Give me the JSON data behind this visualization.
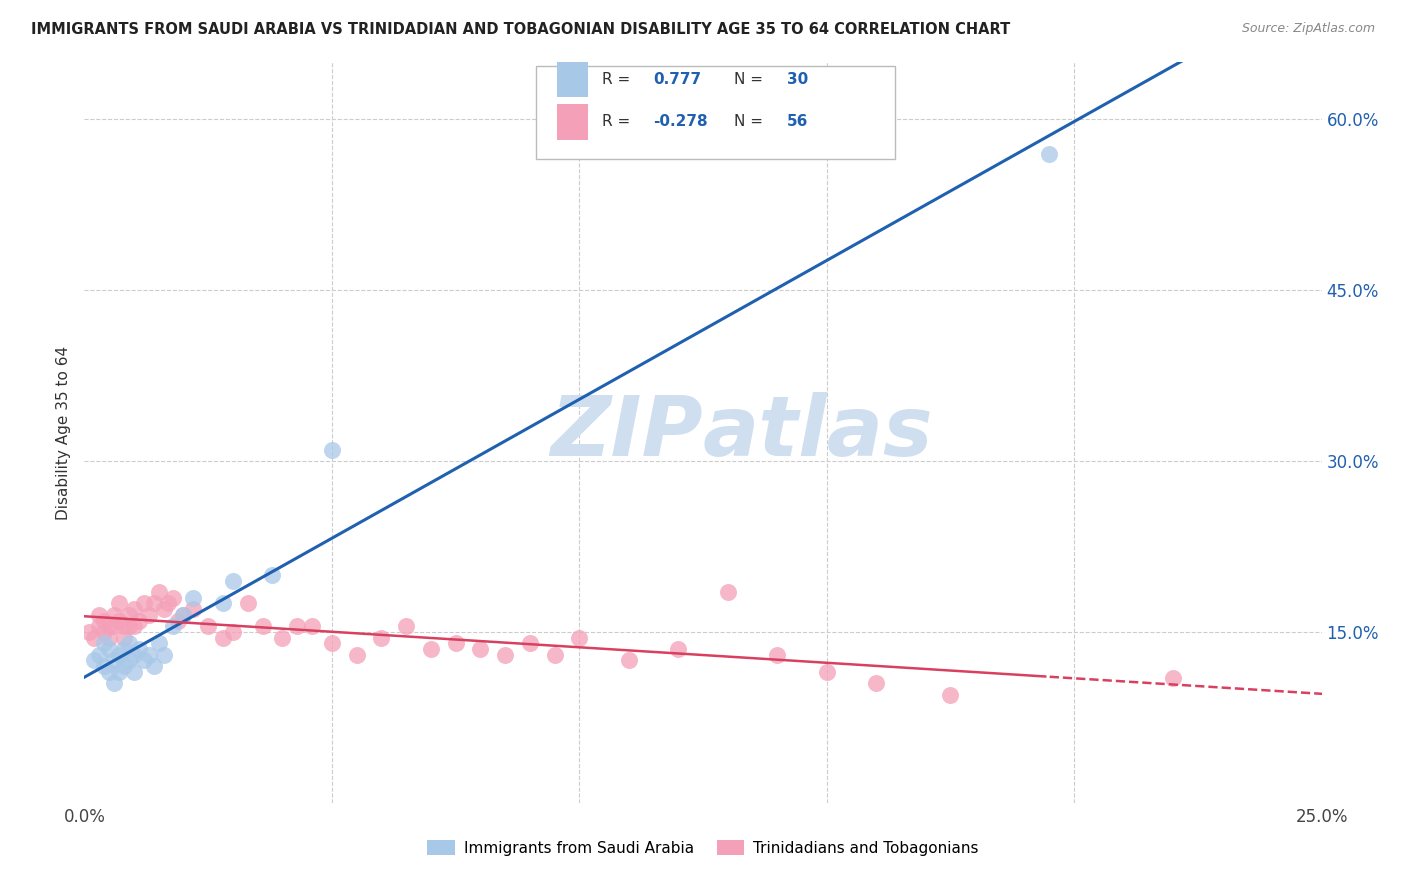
{
  "title": "IMMIGRANTS FROM SAUDI ARABIA VS TRINIDADIAN AND TOBAGONIAN DISABILITY AGE 35 TO 64 CORRELATION CHART",
  "source": "Source: ZipAtlas.com",
  "ylabel": "Disability Age 35 to 64",
  "x_min": 0.0,
  "x_max": 0.25,
  "y_min": 0.0,
  "y_max": 0.65,
  "x_ticks": [
    0.0,
    0.05,
    0.1,
    0.15,
    0.2,
    0.25
  ],
  "x_tick_labels": [
    "0.0%",
    "",
    "",
    "",
    "",
    "25.0%"
  ],
  "y_ticks": [
    0.0,
    0.15,
    0.3,
    0.45,
    0.6
  ],
  "y_right_labels": [
    "",
    "15.0%",
    "30.0%",
    "45.0%",
    "60.0%"
  ],
  "saudi_R": "0.777",
  "saudi_N": "30",
  "trini_R": "-0.278",
  "trini_N": "56",
  "saudi_color": "#a8c8e8",
  "trini_color": "#f4a0b8",
  "saudi_line_color": "#2060b0",
  "trini_line_color": "#d84060",
  "background_color": "#ffffff",
  "grid_color": "#cccccc",
  "watermark_color": "#d0dff0",
  "legend_label_saudi": "Immigrants from Saudi Arabia",
  "legend_label_trini": "Trinidadians and Tobagonians",
  "saudi_x": [
    0.002,
    0.003,
    0.004,
    0.004,
    0.005,
    0.005,
    0.006,
    0.006,
    0.007,
    0.007,
    0.008,
    0.008,
    0.009,
    0.009,
    0.01,
    0.01,
    0.011,
    0.012,
    0.013,
    0.014,
    0.015,
    0.016,
    0.018,
    0.02,
    0.022,
    0.028,
    0.03,
    0.038,
    0.05,
    0.195
  ],
  "saudi_y": [
    0.125,
    0.13,
    0.12,
    0.14,
    0.115,
    0.135,
    0.105,
    0.125,
    0.115,
    0.13,
    0.12,
    0.135,
    0.125,
    0.14,
    0.115,
    0.13,
    0.135,
    0.125,
    0.13,
    0.12,
    0.14,
    0.13,
    0.155,
    0.165,
    0.18,
    0.175,
    0.195,
    0.2,
    0.31,
    0.57
  ],
  "trini_x": [
    0.001,
    0.002,
    0.003,
    0.003,
    0.004,
    0.004,
    0.005,
    0.005,
    0.006,
    0.006,
    0.007,
    0.007,
    0.008,
    0.008,
    0.009,
    0.009,
    0.01,
    0.01,
    0.011,
    0.012,
    0.013,
    0.014,
    0.015,
    0.016,
    0.017,
    0.018,
    0.019,
    0.02,
    0.022,
    0.025,
    0.028,
    0.03,
    0.033,
    0.036,
    0.04,
    0.043,
    0.046,
    0.05,
    0.055,
    0.06,
    0.065,
    0.07,
    0.075,
    0.08,
    0.085,
    0.09,
    0.095,
    0.1,
    0.11,
    0.12,
    0.13,
    0.14,
    0.15,
    0.16,
    0.175,
    0.22
  ],
  "trini_y": [
    0.15,
    0.145,
    0.155,
    0.165,
    0.15,
    0.16,
    0.155,
    0.145,
    0.165,
    0.155,
    0.16,
    0.175,
    0.145,
    0.155,
    0.165,
    0.155,
    0.17,
    0.155,
    0.16,
    0.175,
    0.165,
    0.175,
    0.185,
    0.17,
    0.175,
    0.18,
    0.16,
    0.165,
    0.17,
    0.155,
    0.145,
    0.15,
    0.175,
    0.155,
    0.145,
    0.155,
    0.155,
    0.14,
    0.13,
    0.145,
    0.155,
    0.135,
    0.14,
    0.135,
    0.13,
    0.14,
    0.13,
    0.145,
    0.125,
    0.135,
    0.185,
    0.13,
    0.115,
    0.105,
    0.095,
    0.11
  ]
}
